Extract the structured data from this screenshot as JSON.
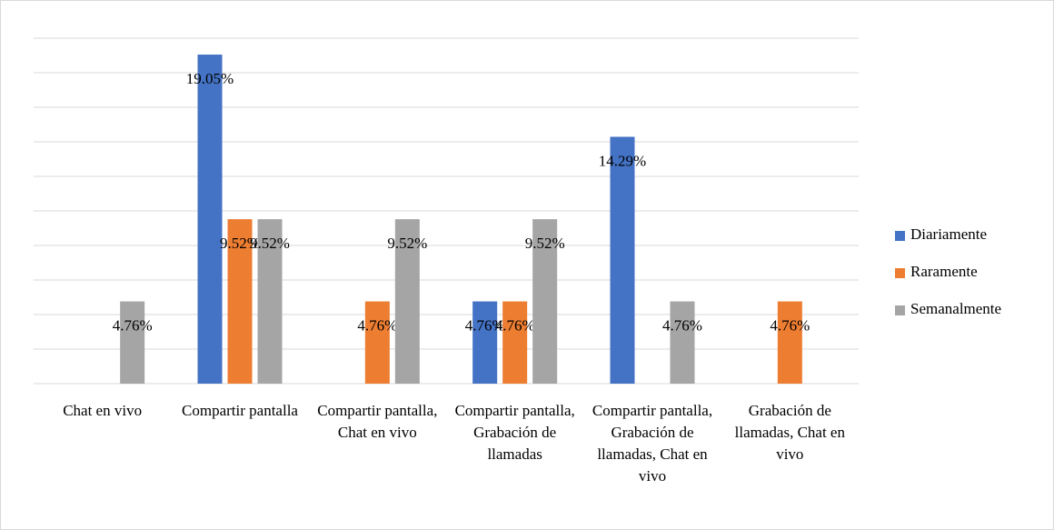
{
  "chart_data": {
    "type": "bar",
    "categories": [
      "Chat en vivo",
      "Compartir pantalla",
      "Compartir pantalla, Chat en vivo",
      "Compartir pantalla, Grabación de llamadas",
      "Compartir pantalla, Grabación de llamadas, Chat en vivo",
      "Grabación de llamadas, Chat en vivo"
    ],
    "series": [
      {
        "name": "Diariamente",
        "color": "#4472c4",
        "values": [
          null,
          19.05,
          null,
          4.76,
          14.29,
          null
        ],
        "value_labels": [
          null,
          "19.05%",
          null,
          "4.76%",
          "14.29%",
          null
        ]
      },
      {
        "name": "Raramente",
        "color": "#ed7d31",
        "values": [
          null,
          9.52,
          4.76,
          4.76,
          null,
          4.76
        ],
        "value_labels": [
          null,
          "9.52%",
          "4.76%",
          "4.76%",
          null,
          "4.76%"
        ]
      },
      {
        "name": "Semanalmente",
        "color": "#a5a5a5",
        "values": [
          4.76,
          9.52,
          9.52,
          9.52,
          4.76,
          null
        ],
        "value_labels": [
          "4.76%",
          "9.52%",
          "9.52%",
          "9.52%",
          "4.76%",
          null
        ]
      }
    ],
    "ylim": [
      0,
      20
    ],
    "yticks": [
      0,
      2,
      4,
      6,
      8,
      10,
      12,
      14,
      16,
      18,
      20
    ],
    "grid": true,
    "legend": "right"
  }
}
